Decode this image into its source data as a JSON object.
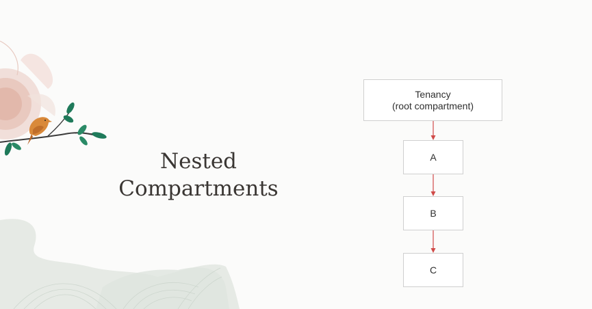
{
  "slide": {
    "title_line1": "Nested",
    "title_line2": "Compartments"
  },
  "diagram": {
    "root": {
      "line1": "Tenancy",
      "line2": "(root compartment)"
    },
    "children": [
      "A",
      "B",
      "C"
    ],
    "arrow_color": "#d04a48"
  },
  "decoration": {
    "icons": [
      "bird-icon",
      "branch-icon",
      "nest-icon"
    ]
  }
}
